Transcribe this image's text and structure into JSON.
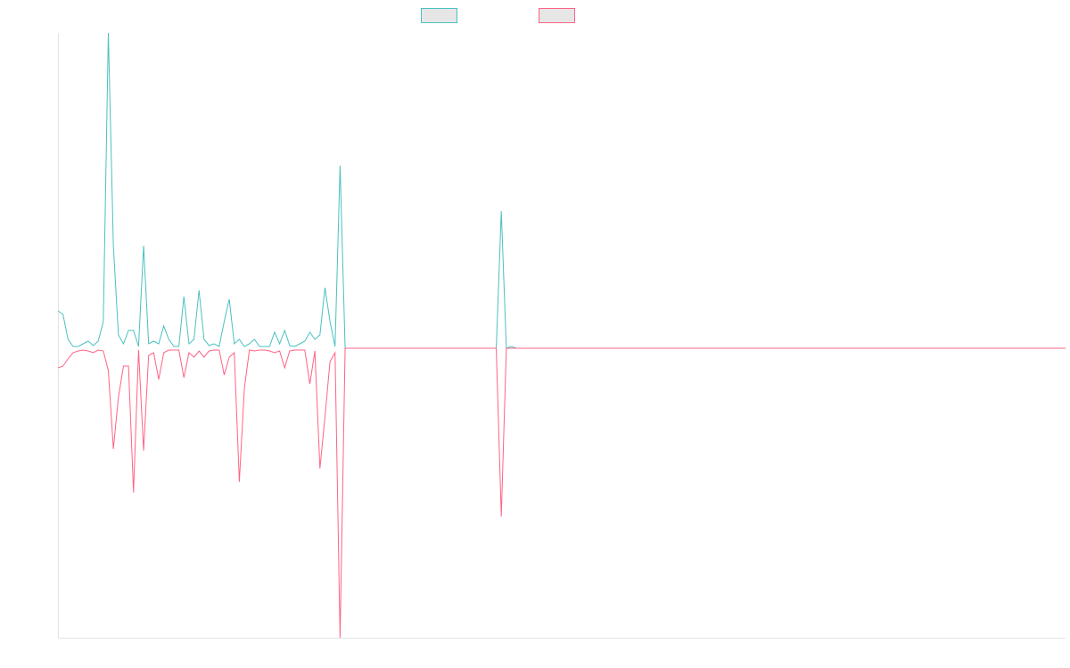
{
  "chart_data": {
    "type": "line",
    "ylim": [
      -325,
      354
    ],
    "series": [
      {
        "color": "#4bc0c0",
        "values": [
          42,
          38,
          10,
          2,
          2,
          5,
          8,
          3,
          8,
          30,
          354,
          115,
          15,
          5,
          20,
          20,
          2,
          115,
          5,
          8,
          5,
          25,
          10,
          2,
          2,
          58,
          5,
          10,
          65,
          10,
          3,
          5,
          2,
          30,
          55,
          5,
          10,
          2,
          5,
          10,
          2,
          2,
          2,
          18,
          5,
          20,
          3,
          2,
          5,
          8,
          18,
          10,
          15,
          68,
          30,
          2,
          205,
          0,
          0,
          0,
          0,
          0,
          0,
          0,
          0,
          0,
          0,
          0,
          0,
          0,
          0,
          0,
          0,
          0,
          0,
          0,
          0,
          0,
          0,
          0,
          0,
          0,
          0,
          0,
          0,
          0,
          0,
          0,
          154,
          0,
          2,
          0,
          0,
          0,
          0,
          0,
          0,
          0,
          0,
          0,
          0,
          0,
          0,
          0,
          0,
          0,
          0,
          0,
          0,
          0,
          0,
          0,
          0,
          0,
          0,
          0,
          0,
          0,
          0,
          0,
          0,
          0,
          0,
          0,
          0,
          0,
          0,
          0,
          0,
          0,
          0,
          0,
          0,
          0,
          0,
          0,
          0,
          0,
          0,
          0,
          0,
          0,
          0,
          0,
          0,
          0,
          0,
          0,
          0,
          0,
          0,
          0,
          0,
          0,
          0,
          0,
          0,
          0,
          0,
          0,
          0,
          0,
          0,
          0,
          0,
          0,
          0,
          0,
          0,
          0,
          0,
          0,
          0,
          0,
          0,
          0,
          0,
          0,
          0,
          0,
          0,
          0,
          0,
          0,
          0,
          0,
          0,
          0,
          0,
          0,
          0,
          0,
          0,
          0,
          0,
          0,
          0,
          0,
          0,
          0,
          0
        ]
      },
      {
        "color": "#ff6384",
        "values": [
          -22,
          -20,
          -12,
          -5,
          -3,
          -2,
          -3,
          -5,
          -2,
          -3,
          -25,
          -113,
          -55,
          -20,
          -20,
          -162,
          -2,
          -115,
          -8,
          -5,
          -35,
          -5,
          -2,
          -2,
          -2,
          -33,
          -5,
          -10,
          -3,
          -10,
          -3,
          -2,
          -2,
          -30,
          -10,
          -5,
          -150,
          -45,
          -2,
          -3,
          -2,
          -2,
          -3,
          -5,
          -3,
          -22,
          -3,
          -2,
          -2,
          -2,
          -40,
          -3,
          -135,
          -77,
          -15,
          -5,
          -325,
          0,
          0,
          0,
          0,
          0,
          0,
          0,
          0,
          0,
          0,
          0,
          0,
          0,
          0,
          0,
          0,
          0,
          0,
          0,
          0,
          0,
          0,
          0,
          0,
          0,
          0,
          0,
          0,
          0,
          0,
          0,
          -189,
          0,
          0,
          0,
          0,
          0,
          0,
          0,
          0,
          0,
          0,
          0,
          0,
          0,
          0,
          0,
          0,
          0,
          0,
          0,
          0,
          0,
          0,
          0,
          0,
          0,
          0,
          0,
          0,
          0,
          0,
          0,
          0,
          0,
          0,
          0,
          0,
          0,
          0,
          0,
          0,
          0,
          0,
          0,
          0,
          0,
          0,
          0,
          0,
          0,
          0,
          0,
          0,
          0,
          0,
          0,
          0,
          0,
          0,
          0,
          0,
          0,
          0,
          0,
          0,
          0,
          0,
          0,
          0,
          0,
          0,
          0,
          0,
          0,
          0,
          0,
          0,
          0,
          0,
          0,
          0,
          0,
          0,
          0,
          0,
          0,
          0,
          0,
          0,
          0,
          0,
          0,
          0,
          0,
          0,
          0,
          0,
          0,
          0,
          0,
          0,
          0,
          0,
          0,
          0,
          0,
          0,
          0,
          0,
          0,
          0,
          0,
          0
        ]
      }
    ]
  }
}
